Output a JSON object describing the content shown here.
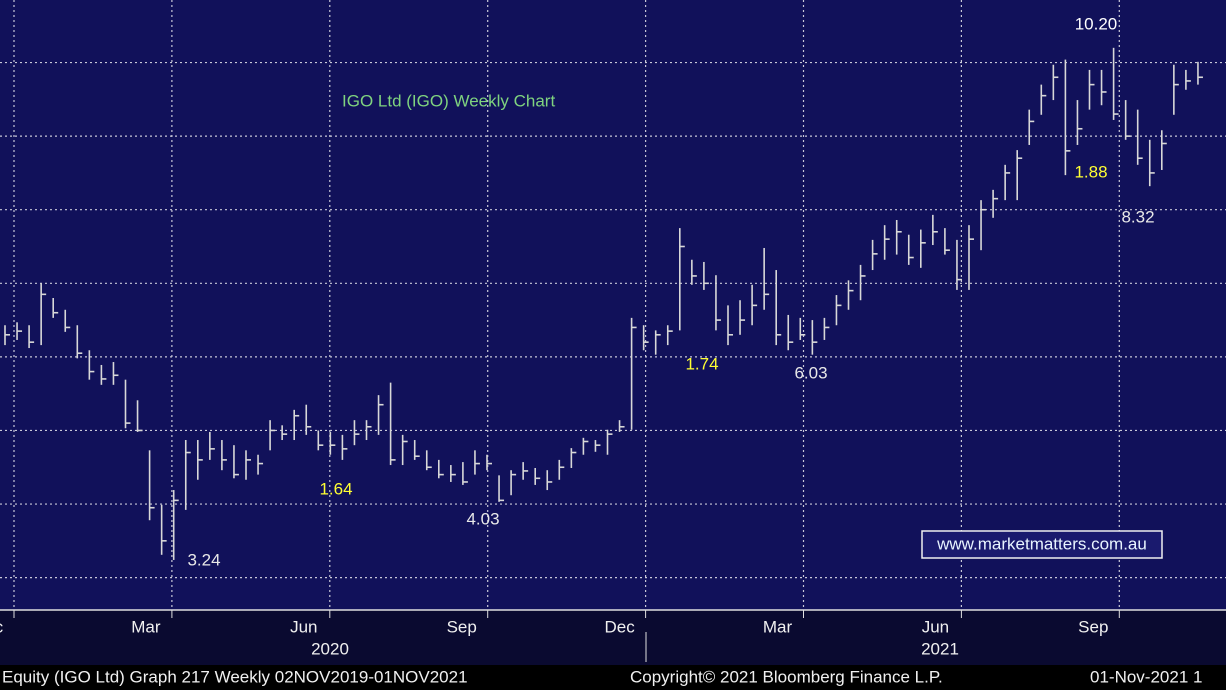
{
  "chart_data": {
    "type": "hlc",
    "title": "IGO Ltd (IGO) Weekly Chart",
    "title_color": "#7fd37f",
    "bar_color": "#d8d8d8",
    "grid": true,
    "ylim": [
      2.56,
      10.85
    ],
    "yticks": [
      3,
      4,
      5,
      6,
      7,
      8,
      9,
      10
    ],
    "high": [
      6.43,
      6.47,
      6.43,
      7.0,
      6.8,
      6.64,
      6.43,
      6.09,
      5.89,
      5.93,
      5.69,
      5.41,
      4.73,
      3.99,
      4.19,
      4.87,
      4.87,
      4.98,
      4.87,
      4.8,
      4.73,
      4.67,
      5.14,
      5.07,
      5.28,
      5.35,
      5.0,
      4.98,
      4.94,
      5.14,
      5.14,
      5.48,
      5.65,
      4.94,
      4.87,
      4.73,
      4.6,
      4.53,
      4.57,
      4.73,
      4.67,
      4.39,
      4.46,
      4.57,
      4.49,
      4.46,
      4.6,
      4.76,
      4.9,
      4.87,
      5.01,
      5.14,
      6.53,
      6.43,
      6.36,
      6.43,
      7.75,
      7.32,
      7.29,
      7.11,
      6.7,
      6.77,
      6.98,
      7.48,
      7.18,
      6.57,
      6.53,
      6.5,
      6.53,
      6.84,
      7.04,
      7.25,
      7.59,
      7.79,
      7.86,
      7.66,
      7.73,
      7.93,
      7.75,
      7.59,
      7.79,
      8.13,
      8.27,
      8.61,
      8.81,
      9.36,
      9.7,
      9.97,
      10.04,
      9.49,
      9.9,
      9.9,
      10.2,
      9.49,
      9.36,
      8.95,
      9.08,
      9.97,
      9.9,
      10.01
    ],
    "low": [
      6.16,
      6.23,
      6.12,
      6.16,
      6.53,
      6.34,
      5.98,
      5.69,
      5.62,
      5.62,
      5.03,
      4.98,
      3.78,
      3.31,
      3.24,
      3.92,
      4.33,
      4.6,
      4.46,
      4.35,
      4.33,
      4.4,
      4.73,
      4.87,
      4.87,
      4.94,
      4.73,
      4.67,
      4.6,
      4.8,
      4.87,
      4.94,
      4.53,
      4.53,
      4.6,
      4.46,
      4.35,
      4.3,
      4.26,
      4.4,
      4.46,
      4.03,
      4.12,
      4.33,
      4.26,
      4.19,
      4.33,
      4.49,
      4.67,
      4.71,
      4.67,
      4.98,
      5.01,
      6.09,
      6.03,
      6.16,
      6.36,
      6.98,
      6.91,
      6.36,
      6.16,
      6.3,
      6.43,
      6.64,
      6.16,
      6.09,
      6.23,
      6.03,
      6.23,
      6.43,
      6.64,
      6.77,
      7.18,
      7.32,
      7.39,
      7.25,
      7.21,
      7.52,
      7.39,
      6.91,
      6.91,
      7.45,
      7.89,
      8.13,
      8.13,
      8.88,
      9.29,
      9.49,
      8.47,
      8.88,
      9.36,
      9.42,
      9.22,
      8.95,
      8.61,
      8.32,
      8.54,
      9.29,
      9.63,
      9.7
    ],
    "close": [
      6.3,
      6.35,
      6.2,
      6.85,
      6.6,
      6.4,
      6.05,
      5.8,
      5.7,
      5.75,
      5.1,
      5.0,
      3.95,
      3.5,
      4.05,
      4.7,
      4.6,
      4.75,
      4.6,
      4.4,
      4.6,
      4.55,
      5.0,
      4.95,
      5.2,
      5.05,
      4.8,
      4.8,
      4.75,
      4.95,
      5.05,
      5.35,
      4.6,
      4.85,
      4.65,
      4.5,
      4.4,
      4.4,
      4.3,
      4.55,
      4.55,
      4.05,
      4.4,
      4.45,
      4.35,
      4.3,
      4.5,
      4.7,
      4.85,
      4.8,
      4.95,
      5.05,
      6.4,
      6.2,
      6.3,
      6.35,
      7.5,
      7.1,
      7.0,
      6.5,
      6.3,
      6.5,
      6.7,
      6.85,
      6.3,
      6.2,
      6.3,
      6.2,
      6.4,
      6.7,
      6.9,
      7.1,
      7.4,
      7.6,
      7.7,
      7.35,
      7.55,
      7.7,
      7.45,
      7.05,
      7.6,
      8.0,
      8.15,
      8.5,
      8.7,
      9.2,
      9.55,
      9.8,
      8.8,
      9.1,
      9.7,
      9.6,
      9.3,
      9.0,
      8.7,
      8.5,
      8.9,
      9.7,
      9.75,
      9.8
    ],
    "x_labels": [
      "Dec",
      "Mar",
      "Jun",
      "Sep",
      "Dec",
      "Mar",
      "Jun",
      "Sep"
    ],
    "year_labels": [
      "2020",
      "2021"
    ],
    "annotations": [
      {
        "text": "10.20",
        "color": "#ffffff"
      },
      {
        "text": "1.88",
        "color": "#ffff33"
      },
      {
        "text": "8.32",
        "color": "#e8e8e8"
      },
      {
        "text": "1.74",
        "color": "#ffff33"
      },
      {
        "text": "6.03",
        "color": "#e8e8e8"
      },
      {
        "text": "1.64",
        "color": "#ffff33"
      },
      {
        "text": "4.03",
        "color": "#e8e8e8"
      },
      {
        "text": "3.24",
        "color": "#e8e8e8"
      }
    ],
    "watermark": "www.marketmatters.com.au",
    "footer_left": "Equity (IGO Ltd) Graph 217  Weekly 02NOV2019-01NOV2021",
    "footer_center": "Copyright© 2021 Bloomberg Finance L.P.",
    "footer_right": "01-Nov-2021 1"
  }
}
